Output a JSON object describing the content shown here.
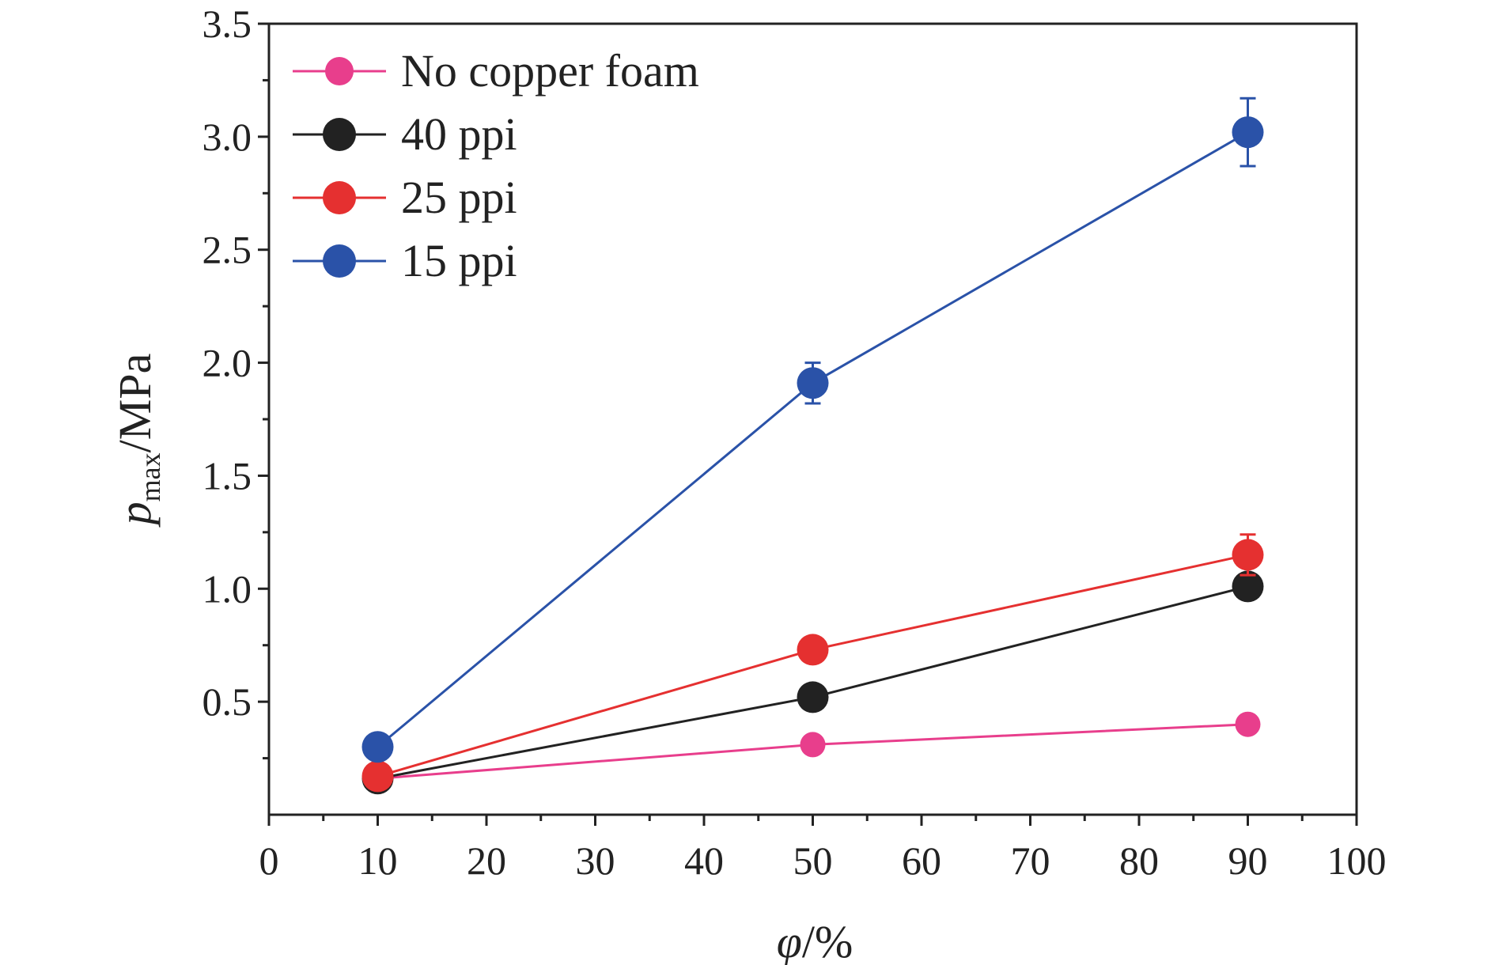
{
  "chart_data": {
    "type": "line",
    "xlabel": {
      "main": "φ",
      "suffix": "/%"
    },
    "ylabel": {
      "main": "p",
      "sub": "max",
      "suffix": "/MPa"
    },
    "xlim": [
      0,
      100
    ],
    "ylim": [
      0.0,
      3.5
    ],
    "x_ticks": [
      "0",
      "10",
      "20",
      "30",
      "40",
      "50",
      "60",
      "70",
      "80",
      "90",
      "100"
    ],
    "y_ticks": [
      "0.5",
      "1.0",
      "1.5",
      "2.0",
      "2.5",
      "3.0",
      "3.5"
    ],
    "legend_position": "top-left",
    "grid": false,
    "x": [
      10,
      50,
      90
    ],
    "series": [
      {
        "name": "No copper foam",
        "color": "#e83e8c",
        "values": [
          0.16,
          0.31,
          0.4
        ],
        "errors": [
          0.0,
          0.0,
          0.0
        ],
        "marker": "small"
      },
      {
        "name": "40 ppi",
        "color": "#222222",
        "values": [
          0.16,
          0.52,
          1.01
        ],
        "errors": [
          0.02,
          0.02,
          0.05
        ],
        "marker": "large"
      },
      {
        "name": "25 ppi",
        "color": "#e53030",
        "values": [
          0.17,
          0.73,
          1.15
        ],
        "errors": [
          0.02,
          0.02,
          0.09
        ],
        "marker": "large"
      },
      {
        "name": "15 ppi",
        "color": "#2a52a8",
        "values": [
          0.3,
          1.91,
          3.02
        ],
        "errors": [
          0.02,
          0.09,
          0.15
        ],
        "marker": "large"
      }
    ]
  }
}
